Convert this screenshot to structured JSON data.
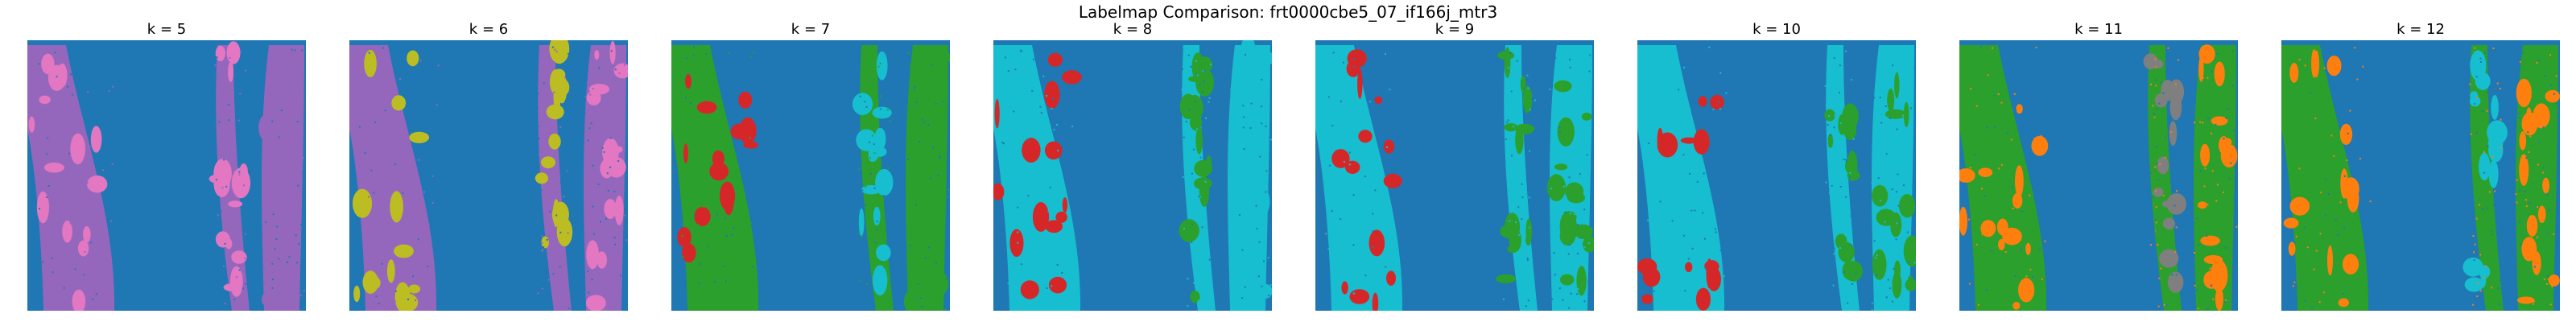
{
  "figure": {
    "title": "Labelmap Comparison: frt0000cbe5_07_if166j_mtr3"
  },
  "colors": {
    "background": "#1f77b4",
    "orange": "#ff7f0e",
    "green": "#2ca02c",
    "red": "#d62728",
    "purple": "#9467bd",
    "pink": "#e377c2",
    "gray": "#7f7f7f",
    "olive": "#bcbd22",
    "cyan": "#17becf"
  },
  "panels": [
    {
      "title": "k = 5",
      "strip": "purple",
      "blotches": [
        "pink",
        "pink",
        "purple"
      ],
      "dots": "purple"
    },
    {
      "title": "k = 6",
      "strip": "purple",
      "blotches": [
        "olive",
        "olive",
        "pink"
      ],
      "dots": "purple"
    },
    {
      "title": "k = 7",
      "strip": "green",
      "blotches": [
        "red",
        "cyan",
        "green"
      ],
      "dots": "green"
    },
    {
      "title": "k = 8",
      "strip": "cyan",
      "blotches": [
        "red",
        "green",
        "cyan"
      ],
      "dots": "cyan"
    },
    {
      "title": "k = 9",
      "strip": "cyan",
      "blotches": [
        "red",
        "green",
        "green"
      ],
      "dots": "cyan"
    },
    {
      "title": "k = 10",
      "strip": "cyan",
      "blotches": [
        "red",
        "green",
        "green"
      ],
      "dots": "cyan"
    },
    {
      "title": "k = 11",
      "strip": "green",
      "blotches": [
        "orange",
        "gray",
        "orange"
      ],
      "dots": "orange"
    },
    {
      "title": "k = 12",
      "strip": "green",
      "blotches": [
        "orange",
        "cyan",
        "orange"
      ],
      "dots": "orange"
    }
  ]
}
